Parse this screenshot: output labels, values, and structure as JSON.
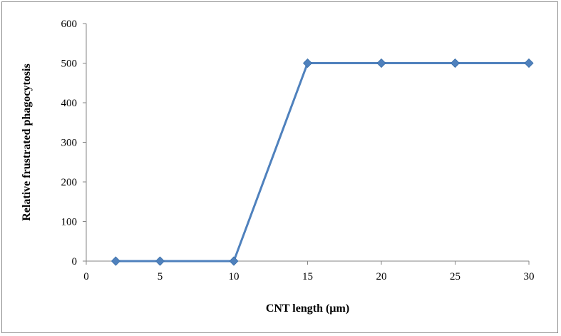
{
  "chart_data": {
    "type": "scatter",
    "title": "",
    "xlabel": "CNT length (µm)",
    "ylabel": "Relative frustrated phagocytosis",
    "xlim": [
      0,
      30
    ],
    "ylim": [
      0,
      600
    ],
    "x_ticks": [
      0,
      5,
      10,
      15,
      20,
      25,
      30
    ],
    "y_ticks": [
      0,
      100,
      200,
      300,
      400,
      500,
      600
    ],
    "grid": false,
    "legend": "none",
    "lines_connected": true,
    "series": [
      {
        "x": [
          2,
          5,
          10,
          15,
          20,
          25,
          30
        ],
        "y": [
          0,
          0,
          0,
          500,
          500,
          500,
          500
        ],
        "color": "#4f81bd",
        "marker": "diamond"
      }
    ]
  }
}
